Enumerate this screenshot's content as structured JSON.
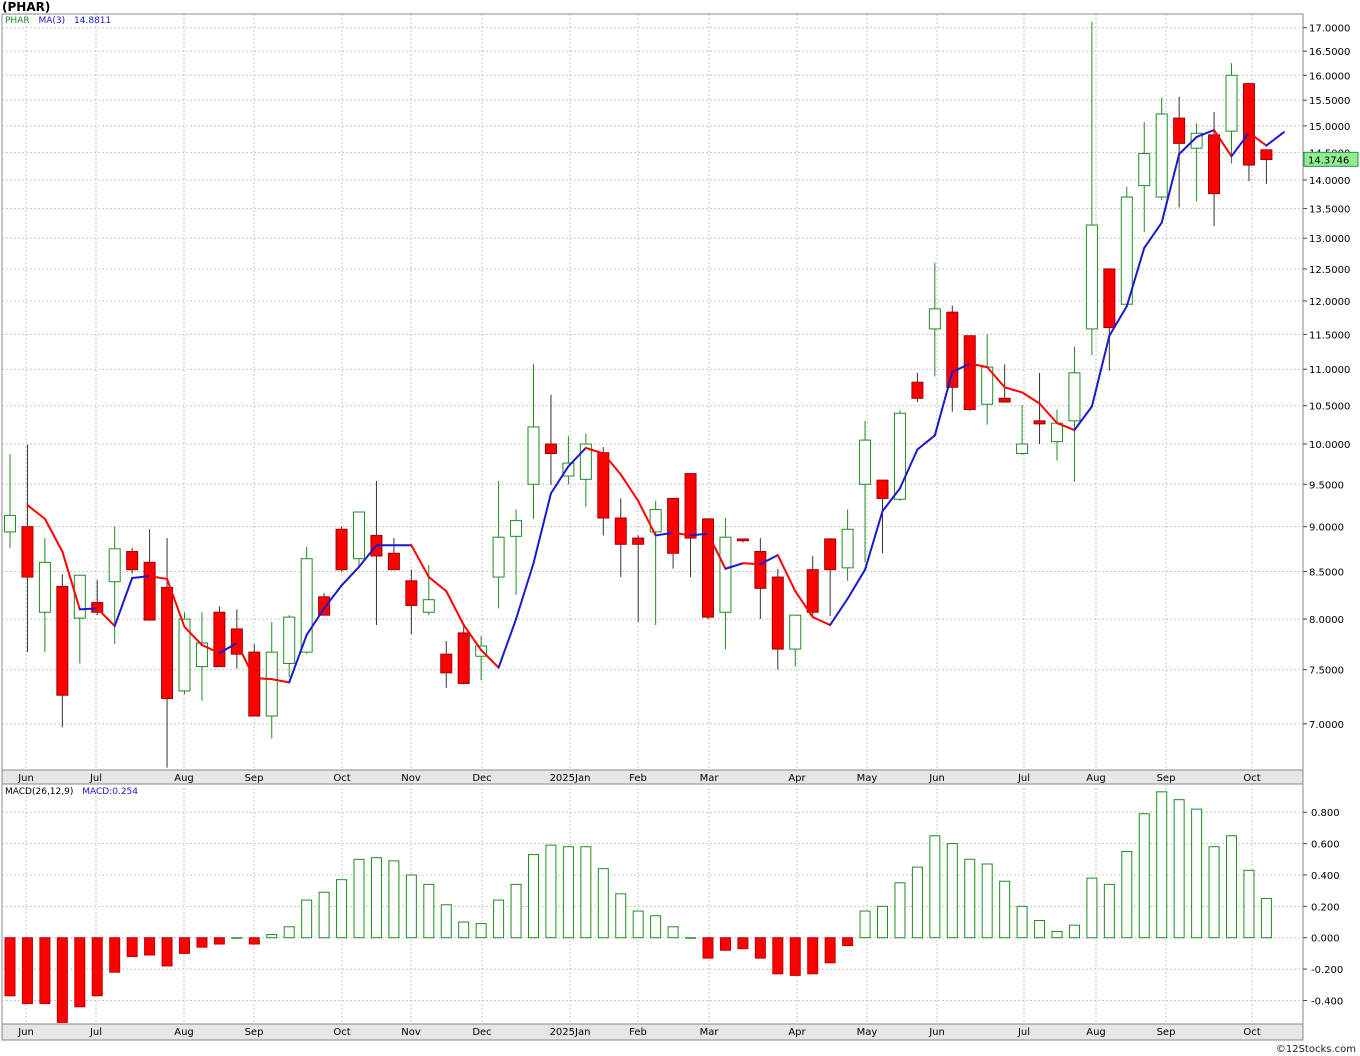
{
  "header": {
    "symbol_title": "(PHAR)"
  },
  "price_legend": {
    "symbol": "PHAR",
    "ma_label": "MA(3)",
    "ma_value": "14.8811"
  },
  "macd_legend": {
    "label": "MACD(26,12,9)",
    "value_label": "MACD:0.254"
  },
  "last_price_label": "14.3746",
  "footer": {
    "copyright": "©12Stocks.com"
  },
  "colors": {
    "up_candle": "#228b22",
    "down_candle": "#ff0000",
    "ma_rising": "#1a1acd",
    "ma_falling": "#ff0000",
    "grid": "#c8c8c8",
    "axis_bg": "#e6e6e6",
    "last_price_bg": "#90ee90"
  },
  "chart_data": [
    {
      "type": "candlestick",
      "interval": "weekly",
      "scale": "log",
      "grid": true,
      "y_ticks": [
        "7.0000",
        "7.5000",
        "8.0000",
        "8.5000",
        "9.0000",
        "9.5000",
        "10.0000",
        "10.5000",
        "11.0000",
        "11.5000",
        "12.0000",
        "12.5000",
        "13.0000",
        "13.5000",
        "14.0000",
        "14.5000",
        "15.0000",
        "15.5000",
        "16.0000",
        "16.5000",
        "17.0000"
      ],
      "x_labels": [
        "Jun",
        "Jul",
        "Aug",
        "Sep",
        "Oct",
        "Nov",
        "Dec",
        "2025Jan",
        "Feb",
        "Mar",
        "Apr",
        "May",
        "Jun",
        "Jul",
        "Aug",
        "Sep",
        "Oct"
      ],
      "ylim": [
        6.6,
        17.3
      ],
      "ma_period": 3,
      "candles": [
        {
          "o": 8.94,
          "h": 9.87,
          "l": 8.76,
          "c": 9.13
        },
        {
          "o": 9.0,
          "h": 9.99,
          "l": 7.67,
          "c": 8.44
        },
        {
          "o": 8.07,
          "h": 8.87,
          "l": 7.67,
          "c": 8.6
        },
        {
          "o": 8.34,
          "h": 8.47,
          "l": 6.97,
          "c": 7.26
        },
        {
          "o": 8.01,
          "h": 8.47,
          "l": 7.56,
          "c": 8.46
        },
        {
          "o": 8.17,
          "h": 8.41,
          "l": 8.04,
          "c": 8.07
        },
        {
          "o": 8.39,
          "h": 9.0,
          "l": 7.75,
          "c": 8.75
        },
        {
          "o": 8.72,
          "h": 8.76,
          "l": 8.48,
          "c": 8.52
        },
        {
          "o": 8.6,
          "h": 8.97,
          "l": 7.99,
          "c": 7.99
        },
        {
          "o": 8.33,
          "h": 8.87,
          "l": 6.62,
          "c": 7.23
        },
        {
          "o": 7.3,
          "h": 8.07,
          "l": 7.27,
          "c": 8.0
        },
        {
          "o": 7.53,
          "h": 8.07,
          "l": 7.21,
          "c": 7.76
        },
        {
          "o": 8.07,
          "h": 8.13,
          "l": 7.53,
          "c": 7.53
        },
        {
          "o": 7.9,
          "h": 8.1,
          "l": 7.51,
          "c": 7.65
        },
        {
          "o": 7.67,
          "h": 7.75,
          "l": 7.07,
          "c": 7.07
        },
        {
          "o": 7.07,
          "h": 7.97,
          "l": 6.87,
          "c": 7.67
        },
        {
          "o": 7.56,
          "h": 8.04,
          "l": 7.43,
          "c": 8.02
        },
        {
          "o": 7.67,
          "h": 8.77,
          "l": 7.65,
          "c": 8.64
        },
        {
          "o": 8.23,
          "h": 8.27,
          "l": 8.04,
          "c": 8.04
        },
        {
          "o": 8.97,
          "h": 9.0,
          "l": 8.5,
          "c": 8.52
        },
        {
          "o": 8.64,
          "h": 9.13,
          "l": 8.54,
          "c": 9.17
        },
        {
          "o": 8.9,
          "h": 9.54,
          "l": 7.94,
          "c": 8.67
        },
        {
          "o": 8.7,
          "h": 8.87,
          "l": 8.54,
          "c": 8.52
        },
        {
          "o": 8.4,
          "h": 8.52,
          "l": 7.85,
          "c": 8.14
        },
        {
          "o": 8.07,
          "h": 8.57,
          "l": 8.04,
          "c": 8.2
        },
        {
          "o": 7.65,
          "h": 7.78,
          "l": 7.33,
          "c": 7.47
        },
        {
          "o": 7.86,
          "h": 7.94,
          "l": 7.36,
          "c": 7.37
        },
        {
          "o": 7.63,
          "h": 7.83,
          "l": 7.4,
          "c": 7.73
        },
        {
          "o": 8.44,
          "h": 9.54,
          "l": 8.11,
          "c": 8.88
        },
        {
          "o": 8.89,
          "h": 9.2,
          "l": 8.25,
          "c": 9.07
        },
        {
          "o": 9.5,
          "h": 11.07,
          "l": 9.09,
          "c": 10.22
        },
        {
          "o": 10.0,
          "h": 10.65,
          "l": 9.49,
          "c": 9.88
        },
        {
          "o": 9.6,
          "h": 10.1,
          "l": 9.5,
          "c": 9.76
        },
        {
          "o": 9.56,
          "h": 10.13,
          "l": 9.23,
          "c": 10.0
        },
        {
          "o": 9.89,
          "h": 9.96,
          "l": 8.9,
          "c": 9.1
        },
        {
          "o": 9.1,
          "h": 9.33,
          "l": 8.44,
          "c": 8.8
        },
        {
          "o": 8.87,
          "h": 8.9,
          "l": 7.97,
          "c": 8.8
        },
        {
          "o": 8.94,
          "h": 9.3,
          "l": 7.94,
          "c": 9.2
        },
        {
          "o": 9.33,
          "h": 9.33,
          "l": 8.53,
          "c": 8.7
        },
        {
          "o": 9.63,
          "h": 9.63,
          "l": 8.44,
          "c": 8.87
        },
        {
          "o": 9.09,
          "h": 9.09,
          "l": 8.0,
          "c": 8.02
        },
        {
          "o": 8.07,
          "h": 9.1,
          "l": 7.7,
          "c": 8.88
        },
        {
          "o": 8.86,
          "h": 8.86,
          "l": 8.82,
          "c": 8.84
        },
        {
          "o": 8.72,
          "h": 8.87,
          "l": 8.0,
          "c": 8.32
        },
        {
          "o": 8.44,
          "h": 8.53,
          "l": 7.5,
          "c": 7.7
        },
        {
          "o": 7.7,
          "h": 8.03,
          "l": 7.53,
          "c": 8.04
        },
        {
          "o": 8.52,
          "h": 8.67,
          "l": 8.03,
          "c": 8.07
        },
        {
          "o": 8.86,
          "h": 8.87,
          "l": 8.03,
          "c": 8.52
        },
        {
          "o": 8.54,
          "h": 9.2,
          "l": 8.4,
          "c": 8.97
        },
        {
          "o": 9.5,
          "h": 10.3,
          "l": 8.6,
          "c": 10.05
        },
        {
          "o": 9.55,
          "h": 9.55,
          "l": 8.7,
          "c": 9.33
        },
        {
          "o": 9.32,
          "h": 10.44,
          "l": 9.3,
          "c": 10.4
        },
        {
          "o": 10.82,
          "h": 10.95,
          "l": 10.55,
          "c": 10.6
        },
        {
          "o": 11.58,
          "h": 12.6,
          "l": 10.9,
          "c": 11.88
        },
        {
          "o": 11.83,
          "h": 11.93,
          "l": 10.42,
          "c": 10.75
        },
        {
          "o": 11.48,
          "h": 11.48,
          "l": 10.43,
          "c": 10.45
        },
        {
          "o": 10.52,
          "h": 11.5,
          "l": 10.25,
          "c": 11.03
        },
        {
          "o": 10.6,
          "h": 11.07,
          "l": 10.58,
          "c": 10.55
        },
        {
          "o": 9.88,
          "h": 10.51,
          "l": 9.86,
          "c": 10.0
        },
        {
          "o": 10.3,
          "h": 10.95,
          "l": 10.0,
          "c": 10.26
        },
        {
          "o": 10.03,
          "h": 10.45,
          "l": 9.79,
          "c": 10.27
        },
        {
          "o": 10.3,
          "h": 11.32,
          "l": 9.53,
          "c": 10.95
        },
        {
          "o": 11.58,
          "h": 17.13,
          "l": 11.2,
          "c": 13.22
        },
        {
          "o": 12.5,
          "h": 12.51,
          "l": 10.98,
          "c": 11.6
        },
        {
          "o": 11.95,
          "h": 13.88,
          "l": 11.95,
          "c": 13.7
        },
        {
          "o": 13.9,
          "h": 15.07,
          "l": 13.1,
          "c": 14.48
        },
        {
          "o": 13.7,
          "h": 15.55,
          "l": 13.65,
          "c": 15.23
        },
        {
          "o": 15.15,
          "h": 15.57,
          "l": 13.52,
          "c": 14.67
        },
        {
          "o": 14.58,
          "h": 15.05,
          "l": 13.63,
          "c": 14.86
        },
        {
          "o": 14.83,
          "h": 15.27,
          "l": 13.2,
          "c": 13.76
        },
        {
          "o": 14.9,
          "h": 16.25,
          "l": 14.3,
          "c": 16.0
        },
        {
          "o": 15.83,
          "h": 15.85,
          "l": 13.98,
          "c": 14.27
        },
        {
          "o": 14.55,
          "h": 14.55,
          "l": 13.93,
          "c": 14.37
        }
      ],
      "ma": [
        9.25,
        9.09,
        8.72,
        8.1,
        8.11,
        7.93,
        8.43,
        8.45,
        8.42,
        7.92,
        7.74,
        7.66,
        7.76,
        7.42,
        7.41,
        7.38,
        7.84,
        8.11,
        8.35,
        8.55,
        8.79,
        8.79,
        8.79,
        8.44,
        8.29,
        7.94,
        7.69,
        7.52,
        8.0,
        8.59,
        9.39,
        9.72,
        9.95,
        9.88,
        9.62,
        9.3,
        8.9,
        8.93,
        8.9,
        8.92,
        8.53,
        8.59,
        8.58,
        8.68,
        8.29,
        8.02,
        7.94,
        8.21,
        8.52,
        9.18,
        9.45,
        9.93,
        10.11,
        10.96,
        11.08,
        11.03,
        10.75,
        10.68,
        10.53,
        10.27,
        10.18,
        10.49,
        11.48,
        11.92,
        12.84,
        13.26,
        14.47,
        14.79,
        14.92,
        14.43,
        14.87,
        14.63,
        14.88
      ],
      "last_price": 14.3746
    },
    {
      "type": "bar",
      "name": "MACD(26,12,9)",
      "y_ticks": [
        "-0.400",
        "-0.200",
        "0.000",
        "0.200",
        "0.400",
        "0.600",
        "0.800"
      ],
      "ylim": [
        -0.55,
        0.98
      ],
      "values": [
        -0.37,
        -0.42,
        -0.42,
        -0.54,
        -0.44,
        -0.37,
        -0.22,
        -0.12,
        -0.11,
        -0.18,
        -0.1,
        -0.06,
        -0.04,
        0.0,
        -0.04,
        0.02,
        0.07,
        0.24,
        0.29,
        0.37,
        0.5,
        0.51,
        0.49,
        0.4,
        0.34,
        0.21,
        0.1,
        0.09,
        0.24,
        0.34,
        0.53,
        0.59,
        0.58,
        0.58,
        0.44,
        0.28,
        0.17,
        0.14,
        0.07,
        0.0,
        -0.13,
        -0.08,
        -0.07,
        -0.13,
        -0.23,
        -0.24,
        -0.23,
        -0.16,
        -0.05,
        0.17,
        0.2,
        0.35,
        0.45,
        0.65,
        0.6,
        0.5,
        0.47,
        0.36,
        0.2,
        0.11,
        0.04,
        0.08,
        0.38,
        0.34,
        0.55,
        0.79,
        0.93,
        0.88,
        0.82,
        0.58,
        0.65,
        0.43,
        0.25
      ]
    }
  ]
}
